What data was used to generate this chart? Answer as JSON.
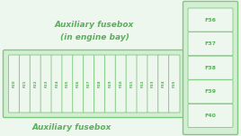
{
  "bg_color": "#eef7ee",
  "box_fill": "#d4eed4",
  "box_edge": "#7cc87c",
  "fuse_fill": "#eef7ee",
  "fuse_edge": "#7cc87c",
  "text_color": "#5ab05a",
  "title_top_line1": "Auxiliary fusebox",
  "title_top_line2": "(in engine bay)",
  "title_bottom": "Auxiliary fusebox",
  "bottom_fuses": [
    "F20",
    "F21",
    "F22",
    "F23",
    "F24",
    "F25",
    "F26",
    "F27",
    "F28",
    "F29",
    "F30",
    "F31",
    "F32",
    "F33",
    "F34",
    "F35"
  ],
  "right_fuses": [
    "F36",
    "F37",
    "F38",
    "F39",
    "F40"
  ],
  "fig_w": 2.68,
  "fig_h": 1.51,
  "dpi": 100
}
